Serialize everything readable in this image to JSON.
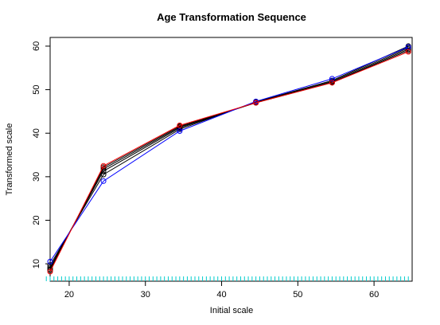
{
  "chart_data": {
    "type": "line",
    "title": "Age  Transformation  Sequence",
    "xlabel": "Initial  scale",
    "ylabel": "Transformed  scale",
    "xlim": [
      17.5,
      65
    ],
    "ylim": [
      6,
      62
    ],
    "x_ticks": [
      20,
      30,
      40,
      50,
      60
    ],
    "y_ticks": [
      10,
      20,
      30,
      40,
      50,
      60
    ],
    "x": [
      17.5,
      24.5,
      34.5,
      44.5,
      54.5,
      64.5
    ],
    "series": [
      {
        "color": "#0000ff",
        "values": [
          10.5,
          29.0,
          40.5,
          47.3,
          52.5,
          59.8
        ]
      },
      {
        "color": "#000000",
        "values": [
          9.7,
          30.5,
          40.9,
          47.2,
          52.1,
          60.0
        ]
      },
      {
        "color": "#000000",
        "values": [
          9.2,
          31.3,
          41.2,
          47.1,
          51.9,
          59.6
        ]
      },
      {
        "color": "#000000",
        "values": [
          8.8,
          31.8,
          41.4,
          47.0,
          51.7,
          59.3
        ]
      },
      {
        "color": "#000000",
        "values": [
          8.5,
          32.2,
          41.6,
          47.0,
          51.6,
          59.0
        ]
      },
      {
        "color": "#ff0000",
        "values": [
          8.2,
          32.5,
          41.8,
          47.0,
          51.6,
          58.7
        ]
      }
    ],
    "rug": {
      "color": "#00cccc",
      "from": 17,
      "to": 64.5,
      "step": 0.5
    },
    "grid": false,
    "legend": "none"
  }
}
